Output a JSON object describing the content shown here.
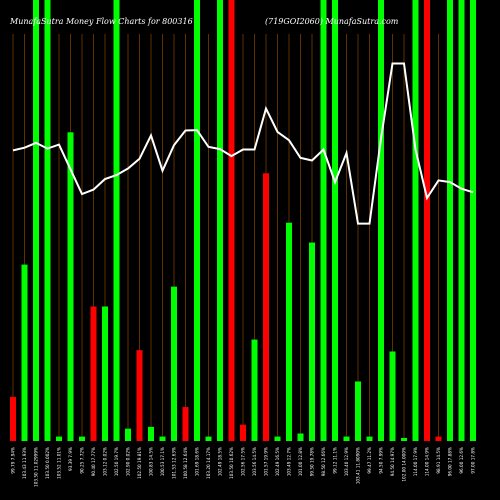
{
  "chart_data": {
    "type": "bar",
    "title": "MunafaSutra  Money Flow  Charts for 800316",
    "subtitle": "(719GOI2060) MunafaSutra.com",
    "colors": {
      "background": "#000000",
      "up": "#00ff00",
      "down": "#ff0000",
      "line": "#ffffff",
      "grid": "#8b4500"
    },
    "ylim": [
      0,
      100
    ],
    "grid": true,
    "categories": [
      "99.79 7.94%",
      "103.43 11.93%",
      "103.50 11.02999%",
      "103.50 0.002%",
      "103.52 11.01%",
      "93.39 7.9%",
      "90.25 7.72%",
      "90.40 17.77%",
      "103.12 0.02%",
      "102.50 19.7%",
      "102.90 0.02%",
      "102.50 19.81%",
      "100.83 14.5%",
      "100.53 17.1%",
      "101.53 12.63%",
      "100.58 12.64%",
      "101.69 18.6%",
      "103.20 14.17%",
      "102.49 18.5%",
      "103.50 10.62%",
      "102.56 17.5%",
      "103.56 14.5%",
      "101.57 19.9%",
      "102.49 16.5%",
      "103.49 12.7%",
      "101.00 12.8%",
      "99.50 19.78%",
      "98.50 12.66%",
      "99.12 11.1%",
      "103.40 12.9%",
      "103.41 11.8090%",
      "99.47 11.2%",
      "94.50 7.99%",
      "94.50 14.97%",
      "102.00 14.000%",
      "114.00 17.9%",
      "114.00 14.9%",
      "98.91 14.5%",
      "96.00 17.88%",
      "96.00 12.6%",
      "97.00 17.8%"
    ],
    "values": [
      10,
      40,
      100,
      100,
      1,
      70,
      1,
      30.5,
      30.5,
      100,
      2.8,
      20.6,
      3.2,
      1,
      35,
      7.7,
      100,
      1,
      100,
      100,
      3.7,
      23,
      60.7,
      1,
      49.5,
      1.7,
      45,
      100,
      100,
      1,
      13.5,
      1,
      100,
      20.3,
      0.7,
      100,
      100,
      1,
      100,
      100,
      100
    ],
    "bar_colors": [
      "red",
      "green",
      "green",
      "green",
      "green",
      "green",
      "green",
      "red",
      "green",
      "green",
      "green",
      "red",
      "green",
      "green",
      "green",
      "red",
      "green",
      "green",
      "green",
      "red",
      "red",
      "green",
      "red",
      "green",
      "green",
      "green",
      "green",
      "green",
      "green",
      "green",
      "green",
      "green",
      "green",
      "green",
      "green",
      "green",
      "red",
      "red",
      "green",
      "green",
      "green"
    ],
    "line_values": [
      65.9,
      66.5,
      67.6,
      66.3,
      67.2,
      61.6,
      56,
      57,
      59.4,
      60.3,
      61.8,
      64,
      69.3,
      61.3,
      67.1,
      70.4,
      70.5,
      66.7,
      66.2,
      64.6,
      66.1,
      66.1,
      75.4,
      70.1,
      68.2,
      64.2,
      63.6,
      66.1,
      58.7,
      65.3,
      49.3,
      49.3,
      68.6,
      85.6,
      85.6,
      66.1,
      55.1,
      59.1,
      58.7,
      57.2,
      56.4
    ]
  }
}
